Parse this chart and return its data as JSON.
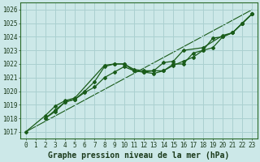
{
  "xlabel": "Graphe pression niveau de la mer (hPa)",
  "xlim": [
    -0.5,
    23.5
  ],
  "ylim": [
    1016.5,
    1026.5
  ],
  "yticks": [
    1017,
    1018,
    1019,
    1020,
    1021,
    1022,
    1023,
    1024,
    1025,
    1026
  ],
  "xticks": [
    0,
    1,
    2,
    3,
    4,
    5,
    6,
    7,
    8,
    9,
    10,
    11,
    12,
    13,
    14,
    15,
    16,
    17,
    18,
    19,
    20,
    21,
    22,
    23
  ],
  "background_color": "#cce8e8",
  "grid_color": "#aad0d0",
  "line_color": "#1a5c1a",
  "series1": [
    1017.0,
    null,
    1018.2,
    1018.9,
    1019.3,
    1019.5,
    null,
    null,
    1021.9,
    1022.0,
    1022.0,
    1021.6,
    1021.5,
    1021.5,
    1022.1,
    1022.2,
    1023.0,
    null,
    1023.2,
    null,
    1024.1,
    1024.3,
    1025.0,
    1025.7
  ],
  "series2": [
    null,
    null,
    1018.0,
    1018.6,
    1019.2,
    1019.4,
    1019.9,
    1020.3,
    1021.0,
    1021.4,
    1021.8,
    1021.5,
    1021.4,
    1021.3,
    1021.5,
    1021.9,
    1022.2,
    1022.5,
    1023.0,
    1023.9,
    1024.0,
    1024.3,
    1025.0,
    1025.7
  ],
  "series3": [
    null,
    null,
    1018.0,
    1018.5,
    1019.2,
    1019.4,
    1020.0,
    1020.7,
    1021.8,
    1022.0,
    1022.0,
    1021.5,
    1021.4,
    1021.5,
    1021.5,
    1022.0,
    1022.0,
    1022.8,
    1023.0,
    1023.2,
    1024.0,
    1024.3,
    1025.0,
    1025.7
  ],
  "straight_line": [
    [
      0,
      1017.0
    ],
    [
      23,
      1026.0
    ]
  ],
  "font_family": "monospace",
  "tick_fontsize": 5.5,
  "label_fontsize": 7
}
